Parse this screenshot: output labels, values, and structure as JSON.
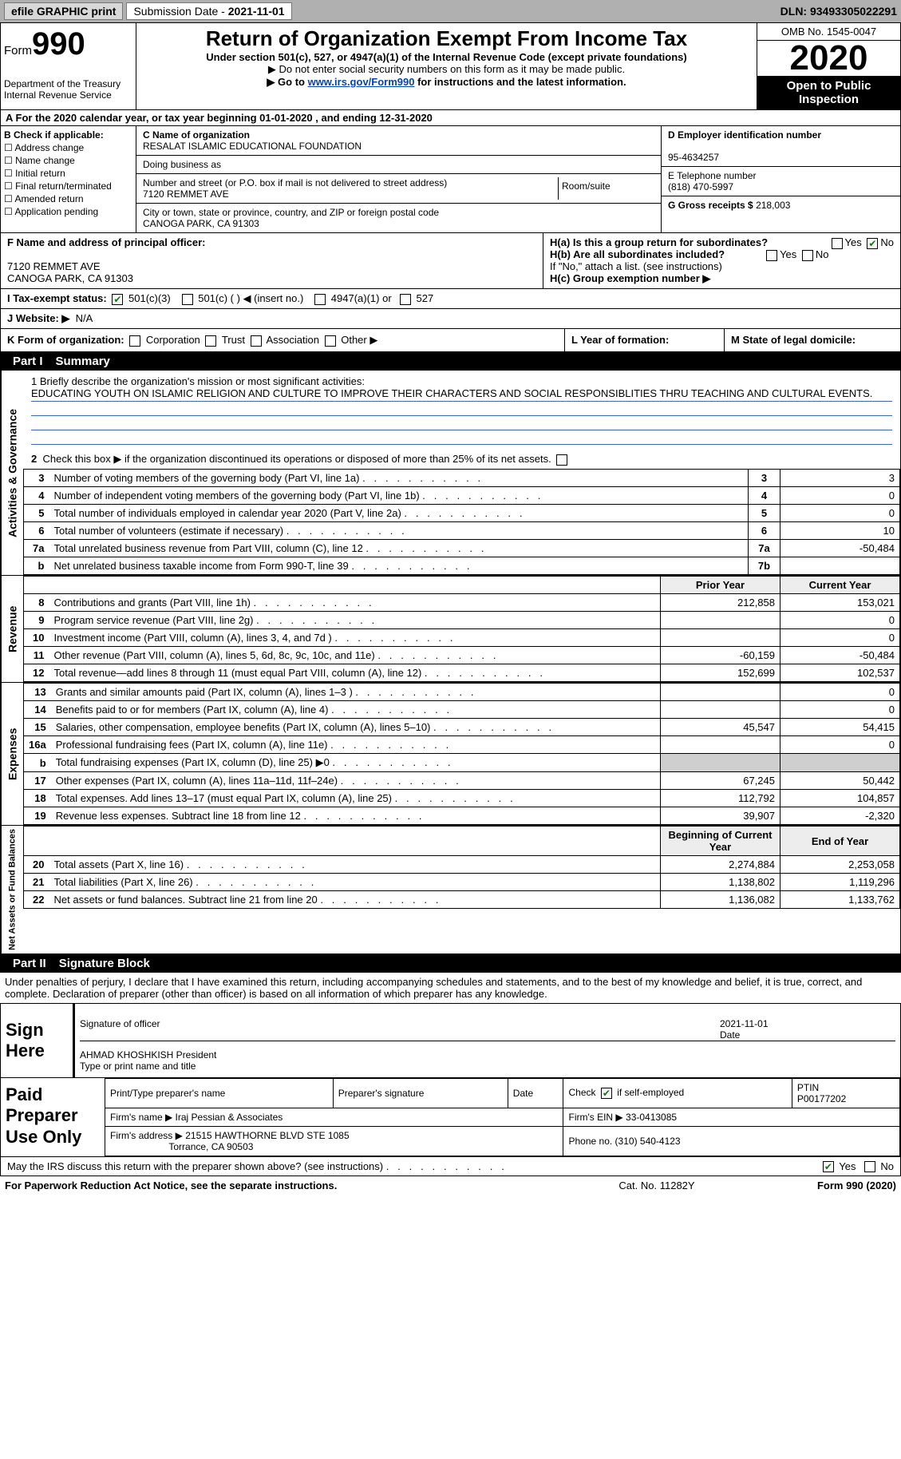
{
  "topbar": {
    "efile": "efile GRAPHIC print",
    "submission_label": "Submission Date - ",
    "submission_date": "2021-11-01",
    "dln_label": "DLN: ",
    "dln": "93493305022291"
  },
  "header": {
    "form_prefix": "Form",
    "form_number": "990",
    "dept1": "Department of the Treasury",
    "dept2": "Internal Revenue Service",
    "title": "Return of Organization Exempt From Income Tax",
    "subtitle": "Under section 501(c), 527, or 4947(a)(1) of the Internal Revenue Code (except private foundations)",
    "note1": "▶ Do not enter social security numbers on this form as it may be made public.",
    "note2_pre": "▶ Go to ",
    "note2_link": "www.irs.gov/Form990",
    "note2_post": " for instructions and the latest information.",
    "omb": "OMB No. 1545-0047",
    "tax_year": "2020",
    "inspect": "Open to Public Inspection"
  },
  "section_a": "A For the 2020 calendar year, or tax year beginning 01-01-2020   , and ending 12-31-2020",
  "section_b": {
    "label": "B Check if applicable:",
    "items": [
      "Address change",
      "Name change",
      "Initial return",
      "Final return/terminated",
      "Amended return",
      "Application pending"
    ]
  },
  "section_c": {
    "name_label": "C Name of organization",
    "name": "RESALAT ISLAMIC EDUCATIONAL FOUNDATION",
    "dba_label": "Doing business as",
    "street_label": "Number and street (or P.O. box if mail is not delivered to street address)",
    "room_label": "Room/suite",
    "street": "7120 REMMET AVE",
    "city_label": "City or town, state or province, country, and ZIP or foreign postal code",
    "city": "CANOGA PARK, CA  91303"
  },
  "section_d": {
    "label": "D Employer identification number",
    "ein": "95-4634257"
  },
  "section_e": {
    "label": "E Telephone number",
    "phone": "(818) 470-5997"
  },
  "section_g": {
    "label": "G Gross receipts $ ",
    "amount": "218,003"
  },
  "section_f": {
    "label": "F  Name and address of principal officer:",
    "addr1": "7120 REMMET AVE",
    "addr2": "CANOGA PARK, CA  91303"
  },
  "section_h": {
    "ha": "H(a)  Is this a group return for subordinates?",
    "hb": "H(b)  Are all subordinates included?",
    "hnote": "If \"No,\" attach a list. (see instructions)",
    "hc": "H(c)  Group exemption number ▶",
    "yes": "Yes",
    "no": "No"
  },
  "tax_status": {
    "label": "I  Tax-exempt status:",
    "opts": [
      "501(c)(3)",
      "501(c) (  ) ◀ (insert no.)",
      "4947(a)(1) or",
      "527"
    ]
  },
  "website": {
    "label": "J  Website: ▶",
    "value": "N/A"
  },
  "korg": {
    "label": "K Form of organization:",
    "opts": [
      "Corporation",
      "Trust",
      "Association",
      "Other ▶"
    ]
  },
  "l": {
    "label": "L Year of formation:"
  },
  "m": {
    "label": "M State of legal domicile:"
  },
  "parts": {
    "p1": "Part I",
    "p1_title": "Summary",
    "p2": "Part II",
    "p2_title": "Signature Block"
  },
  "mission": {
    "q1": "1  Briefly describe the organization's mission or most significant activities:",
    "text": "EDUCATING YOUTH ON ISLAMIC RELIGION AND CULTURE TO IMPROVE THEIR CHARACTERS AND SOCIAL RESPONSIBLITIES THRU TEACHING AND CULTURAL EVENTS."
  },
  "act_gov": {
    "q2": "Check this box ▶       if the organization discontinued its operations or disposed of more than 25% of its net assets.",
    "rows": [
      {
        "n": "3",
        "d": "Number of voting members of the governing body (Part VI, line 1a)",
        "lbl": "3",
        "v": "3"
      },
      {
        "n": "4",
        "d": "Number of independent voting members of the governing body (Part VI, line 1b)",
        "lbl": "4",
        "v": "0"
      },
      {
        "n": "5",
        "d": "Total number of individuals employed in calendar year 2020 (Part V, line 2a)",
        "lbl": "5",
        "v": "0"
      },
      {
        "n": "6",
        "d": "Total number of volunteers (estimate if necessary)",
        "lbl": "6",
        "v": "10"
      },
      {
        "n": "7a",
        "d": "Total unrelated business revenue from Part VIII, column (C), line 12",
        "lbl": "7a",
        "v": "-50,484"
      },
      {
        "n": "b",
        "d": "Net unrelated business taxable income from Form 990-T, line 39",
        "lbl": "7b",
        "v": ""
      }
    ]
  },
  "two_col_headers": {
    "prior": "Prior Year",
    "current": "Current Year"
  },
  "revenue": [
    {
      "n": "8",
      "d": "Contributions and grants (Part VIII, line 1h)",
      "p": "212,858",
      "c": "153,021"
    },
    {
      "n": "9",
      "d": "Program service revenue (Part VIII, line 2g)",
      "p": "",
      "c": "0"
    },
    {
      "n": "10",
      "d": "Investment income (Part VIII, column (A), lines 3, 4, and 7d )",
      "p": "",
      "c": "0"
    },
    {
      "n": "11",
      "d": "Other revenue (Part VIII, column (A), lines 5, 6d, 8c, 9c, 10c, and 11e)",
      "p": "-60,159",
      "c": "-50,484"
    },
    {
      "n": "12",
      "d": "Total revenue—add lines 8 through 11 (must equal Part VIII, column (A), line 12)",
      "p": "152,699",
      "c": "102,537"
    }
  ],
  "expenses": [
    {
      "n": "13",
      "d": "Grants and similar amounts paid (Part IX, column (A), lines 1–3 )",
      "p": "",
      "c": "0"
    },
    {
      "n": "14",
      "d": "Benefits paid to or for members (Part IX, column (A), line 4)",
      "p": "",
      "c": "0"
    },
    {
      "n": "15",
      "d": "Salaries, other compensation, employee benefits (Part IX, column (A), lines 5–10)",
      "p": "45,547",
      "c": "54,415"
    },
    {
      "n": "16a",
      "d": "Professional fundraising fees (Part IX, column (A), line 11e)",
      "p": "",
      "c": "0"
    },
    {
      "n": "b",
      "d": "Total fundraising expenses (Part IX, column (D), line 25) ▶0",
      "p": "shade",
      "c": "shade"
    },
    {
      "n": "17",
      "d": "Other expenses (Part IX, column (A), lines 11a–11d, 11f–24e)",
      "p": "67,245",
      "c": "50,442"
    },
    {
      "n": "18",
      "d": "Total expenses. Add lines 13–17 (must equal Part IX, column (A), line 25)",
      "p": "112,792",
      "c": "104,857"
    },
    {
      "n": "19",
      "d": "Revenue less expenses. Subtract line 18 from line 12",
      "p": "39,907",
      "c": "-2,320"
    }
  ],
  "net_headers": {
    "begin": "Beginning of Current Year",
    "end": "End of Year"
  },
  "net": [
    {
      "n": "20",
      "d": "Total assets (Part X, line 16)",
      "p": "2,274,884",
      "c": "2,253,058"
    },
    {
      "n": "21",
      "d": "Total liabilities (Part X, line 26)",
      "p": "1,138,802",
      "c": "1,119,296"
    },
    {
      "n": "22",
      "d": "Net assets or fund balances. Subtract line 21 from line 20",
      "p": "1,136,082",
      "c": "1,133,762"
    }
  ],
  "vtabs": {
    "ag": "Activities & Governance",
    "rev": "Revenue",
    "exp": "Expenses",
    "net": "Net Assets or Fund Balances"
  },
  "penalties": "Under penalties of perjury, I declare that I have examined this return, including accompanying schedules and statements, and to the best of my knowledge and belief, it is true, correct, and complete. Declaration of preparer (other than officer) is based on all information of which preparer has any knowledge.",
  "sign": {
    "title": "Sign Here",
    "sig_officer": "Signature of officer",
    "date_label": "Date",
    "date": "2021-11-01",
    "name": "AHMAD KHOSHKISH  President",
    "name_label": "Type or print name and title"
  },
  "paid": {
    "title": "Paid Preparer Use Only",
    "h1": "Print/Type preparer's name",
    "h2": "Preparer's signature",
    "h3": "Date",
    "h4_pre": "Check",
    "h4_post": "if self-employed",
    "h5": "PTIN",
    "ptin": "P00177202",
    "firm_label": "Firm's name   ▶",
    "firm": "Iraj Pessian & Associates",
    "ein_label": "Firm's EIN ▶",
    "ein": "33-0413085",
    "addr_label": "Firm's address ▶",
    "addr1": "21515 HAWTHORNE BLVD STE 1085",
    "addr2": "Torrance, CA  90503",
    "phone_label": "Phone no.",
    "phone": "(310) 540-4123"
  },
  "discuss": {
    "q": "May the IRS discuss this return with the preparer shown above? (see instructions)",
    "yes": "Yes",
    "no": "No"
  },
  "footer": {
    "left": "For Paperwork Reduction Act Notice, see the separate instructions.",
    "mid": "Cat. No. 11282Y",
    "right_pre": "Form ",
    "right_form": "990",
    "right_post": " (2020)"
  }
}
